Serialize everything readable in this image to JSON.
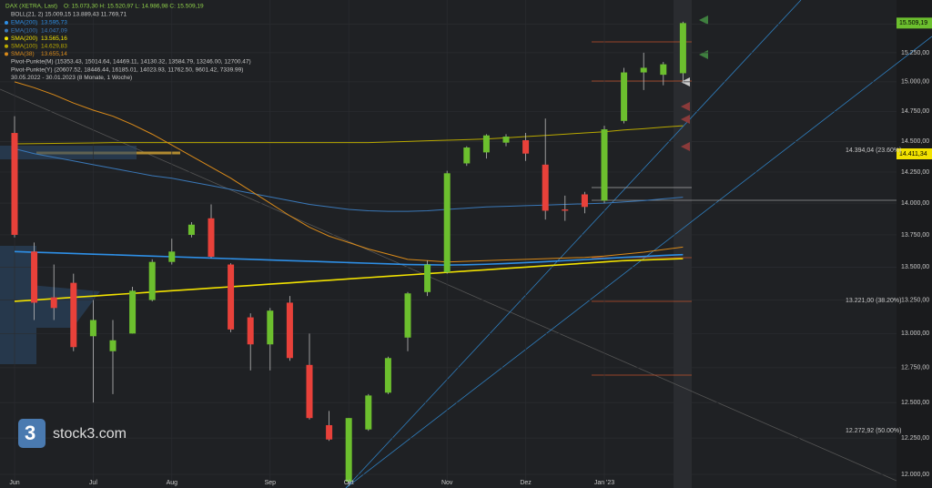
{
  "chart_data": {
    "type": "candlestick",
    "title": "DAX (XETRA, Last)",
    "ohlc_label": "O: 15.073,30  H: 15.520,97  L: 14.986,98  C: 15.509,19",
    "indicator_labels": [
      "BOLL(21, 2)  15.009,15  13.889,43  11.769,71",
      "Pivot-Punkte(M)  (15353.43,  15014.64,  14469.11,  14130.32,  13584.79,  13246.00,  12700.47)",
      "Pivot-Punkte(Y)  (20607.52,  18446.44,  16185.01,  14023.93,  11762.50,  9601.42,  7339.99)",
      "30.05.2022 - 30.01.2023   (8 Monate, 1 Woche)"
    ],
    "watermark": "stock3.com",
    "categories": [
      "Jun",
      null,
      null,
      null,
      "Jul",
      null,
      null,
      null,
      "Aug",
      null,
      null,
      null,
      null,
      "Sep",
      null,
      null,
      null,
      "Okt",
      null,
      null,
      null,
      null,
      "Nov",
      null,
      null,
      null,
      "Dez",
      null,
      null,
      null,
      "Jan '23",
      null,
      null,
      null,
      null
    ],
    "open": [
      14570,
      13620,
      13270,
      13380,
      12980,
      12870,
      13000,
      13250,
      13540,
      13750,
      13880,
      13520,
      13120,
      12920,
      13230,
      12770,
      12340,
      11950,
      12310,
      12570,
      12970,
      13310,
      13460,
      14320,
      14410,
      14490,
      14510,
      14310,
      13950,
      14070,
      14020,
      14670,
      15080,
      15060,
      15073.3
    ],
    "high": [
      14710,
      13690,
      13520,
      13450,
      13250,
      13100,
      13350,
      13560,
      13720,
      13850,
      13990,
      13530,
      13150,
      13190,
      13280,
      13000,
      12440,
      12390,
      12560,
      12830,
      13310,
      13550,
      14260,
      14460,
      14560,
      14560,
      14570,
      14690,
      14060,
      14090,
      14630,
      15120,
      15250,
      15170,
      15520.97
    ],
    "low": [
      13730,
      13100,
      13100,
      12870,
      12500,
      12560,
      13000,
      13240,
      13520,
      13730,
      13570,
      13010,
      12730,
      12730,
      12800,
      12380,
      12230,
      11920,
      12300,
      12560,
      12870,
      13280,
      13450,
      14300,
      14360,
      14460,
      14340,
      13870,
      13860,
      13920,
      14000,
      14650,
      14930,
      14970,
      14986.98
    ],
    "close": [
      13750,
      13230,
      13190,
      12900,
      13100,
      12950,
      13320,
      13540,
      13620,
      13830,
      13580,
      13030,
      12920,
      13170,
      12820,
      12390,
      12240,
      12390,
      12550,
      12820,
      13300,
      13520,
      14240,
      14450,
      14550,
      14540,
      14400,
      13940,
      13940,
      13970,
      14600,
      15080,
      15120,
      15150,
      15509.19
    ],
    "up_color": "#6cbf2e",
    "down_color": "#e8413a",
    "series": [
      {
        "name": "EMA(200)",
        "last_label": "13.595,73",
        "color": "#2e8fe6",
        "values": [
          13620,
          13615,
          13610,
          13605,
          13600,
          13595,
          13590,
          13585,
          13580,
          13575,
          13570,
          13565,
          13560,
          13555,
          13550,
          13545,
          13540,
          13535,
          13530,
          13525,
          13520,
          13518,
          13516,
          13518,
          13522,
          13528,
          13535,
          13542,
          13550,
          13558,
          13566,
          13575,
          13582,
          13590,
          13596
        ]
      },
      {
        "name": "EMA(100)",
        "last_label": "14.047,09",
        "color": "#3a78b8",
        "values": [
          14440,
          14400,
          14370,
          14340,
          14310,
          14280,
          14250,
          14220,
          14200,
          14170,
          14140,
          14110,
          14080,
          14050,
          14020,
          13990,
          13970,
          13950,
          13940,
          13935,
          13935,
          13940,
          13950,
          13960,
          13970,
          13975,
          13980,
          13985,
          13990,
          13995,
          14000,
          14010,
          14020,
          14035,
          14047
        ]
      },
      {
        "name": "SMA(200)",
        "last_label": "13.565,16",
        "color": "#f2e200",
        "values": [
          13240,
          13250,
          13260,
          13270,
          13280,
          13290,
          13300,
          13310,
          13320,
          13330,
          13340,
          13350,
          13360,
          13370,
          13380,
          13390,
          13400,
          13410,
          13420,
          13430,
          13440,
          13450,
          13460,
          13470,
          13480,
          13490,
          13500,
          13510,
          13520,
          13530,
          13540,
          13550,
          13555,
          13560,
          13565
        ]
      },
      {
        "name": "SMA(100)",
        "last_label": "14.629,83",
        "color": "#b8a800",
        "values": [
          14480,
          14482,
          14484,
          14486,
          14488,
          14490,
          14490,
          14490,
          14490,
          14490,
          14490,
          14490,
          14490,
          14490,
          14490,
          14490,
          14490,
          14490,
          14490,
          14495,
          14500,
          14505,
          14510,
          14515,
          14520,
          14530,
          14540,
          14550,
          14560,
          14570,
          14580,
          14595,
          14605,
          14618,
          14630
        ]
      },
      {
        "name": "SMA(38)",
        "last_label": "13.655,14",
        "color": "#d98a1a",
        "values": [
          15000,
          14950,
          14890,
          14820,
          14760,
          14710,
          14640,
          14560,
          14470,
          14380,
          14290,
          14200,
          14100,
          14000,
          13900,
          13810,
          13740,
          13690,
          13640,
          13600,
          13560,
          13550,
          13540,
          13545,
          13550,
          13555,
          13560,
          13565,
          13570,
          13575,
          13585,
          13600,
          13615,
          13635,
          13655
        ]
      }
    ],
    "price_label": "15.509,19",
    "fib_labels": [
      "14.394,04 (23.60%)",
      "13.221,00 (38.20%)",
      "12.272,92 (50.00%)"
    ],
    "marker_label": "14.411,34",
    "log_scale": true,
    "ylim": [
      11907,
      15714
    ],
    "yticks": [
      {
        "value": 12000,
        "label": "12.000,00"
      },
      {
        "value": 12250,
        "label": "12.250,00"
      },
      {
        "value": 12500,
        "label": "12.500,00"
      },
      {
        "value": 12750,
        "label": "12.750,00"
      },
      {
        "value": 13000,
        "label": "13.000,00"
      },
      {
        "value": 13250,
        "label": "13.250,00"
      },
      {
        "value": 13500,
        "label": "13.500,00"
      },
      {
        "value": 13750,
        "label": "13.750,00"
      },
      {
        "value": 14000,
        "label": "14.000,00"
      },
      {
        "value": 14250,
        "label": "14.250,00"
      },
      {
        "value": 14500,
        "label": "14.500,00"
      },
      {
        "value": 14750,
        "label": "14.750,00"
      },
      {
        "value": 15000,
        "label": "15.000,00"
      },
      {
        "value": 15250,
        "label": "15.250,00"
      },
      {
        "value": 15500,
        "label": "15.500,00"
      }
    ],
    "grid": true
  }
}
